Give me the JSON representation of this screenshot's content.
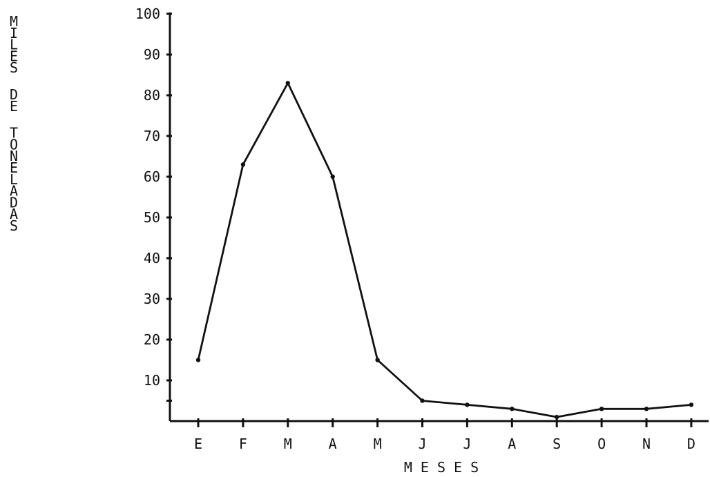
{
  "chart_data": {
    "type": "line",
    "title": "",
    "xlabel": "M E S E S",
    "ylabel": "MILES DE TONELADAS",
    "ylabel_words": [
      "MILES",
      "DE",
      "TONELADAS"
    ],
    "categories": [
      "E",
      "F",
      "M",
      "A",
      "M",
      "J",
      "J",
      "A",
      "S",
      "O",
      "N",
      "D"
    ],
    "series": [
      {
        "values": [
          15,
          63,
          83,
          60,
          15,
          5,
          4,
          3,
          1,
          3,
          3,
          4
        ]
      }
    ],
    "ylim": [
      0,
      100
    ],
    "yticks": [
      10,
      20,
      30,
      40,
      50,
      60,
      70,
      80,
      90,
      100
    ],
    "ytick_labels": [
      "10",
      "20",
      "30",
      "40",
      "50",
      "60",
      "70",
      "80",
      "90",
      "100"
    ],
    "grid": false,
    "legend": "none",
    "colors": {
      "line": "#111111",
      "axis": "#111111",
      "text": "#111111",
      "background": "#ffffff"
    }
  }
}
